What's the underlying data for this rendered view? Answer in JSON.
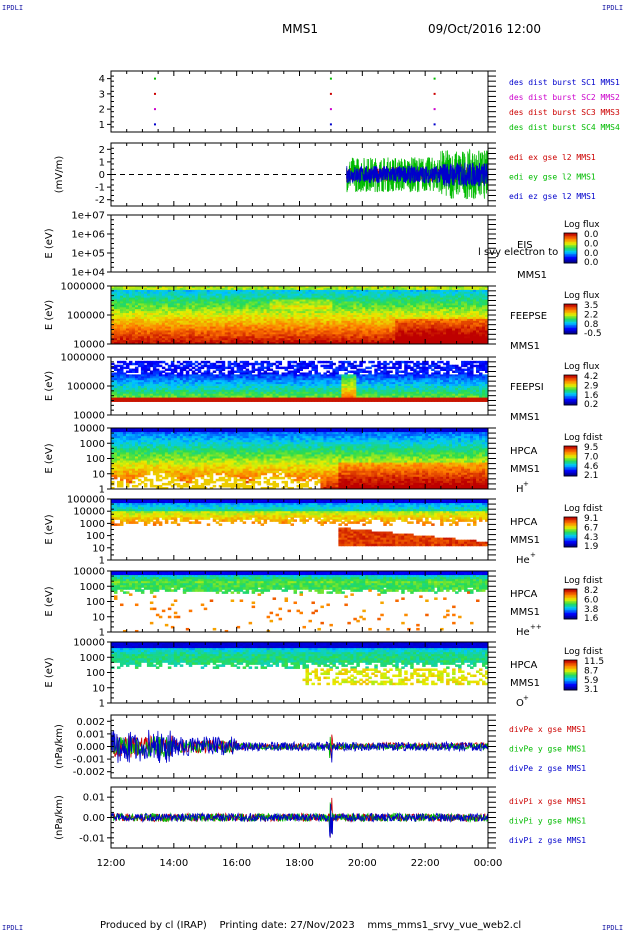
{
  "header": {
    "corner_left_top": "IPDLI",
    "corner_right_top": "IPDLI",
    "corner_left_bottom": "IPDLI",
    "corner_right_bottom": "IPDLI",
    "title": "MMS1",
    "date": "09/Oct/2016 12:00"
  },
  "footer": {
    "produced": "Produced by cl (IRAP)",
    "printing": "Printing date: 27/Nov/2023",
    "script": "mms_mms1_srvy_vue_web2.cl"
  },
  "colors": {
    "blue": "#0000cc",
    "magenta": "#cc00cc",
    "red": "#cc0000",
    "green": "#00bb00"
  },
  "chart_data": [
    {
      "type": "scatter",
      "id": "burst",
      "ylabel": "",
      "ylim": [
        0.5,
        4.5
      ],
      "ticks": [
        "1",
        "2",
        "3",
        "4"
      ],
      "series": [
        {
          "name": "des dist burst SC1 MMS1",
          "color": "blue",
          "y": 1,
          "x": [
            13.4,
            19.0,
            22.3
          ]
        },
        {
          "name": "des dist burst SC2 MMS2",
          "color": "magenta",
          "y": 2,
          "x": [
            13.4,
            19.0,
            22.3
          ]
        },
        {
          "name": "des dist burst SC3 MMS3",
          "color": "red",
          "y": 3,
          "x": [
            13.4,
            19.0,
            22.3
          ]
        },
        {
          "name": "des dist burst SC4 MMS4",
          "color": "green",
          "y": 4,
          "x": [
            13.4,
            19.0,
            22.3
          ]
        }
      ]
    },
    {
      "type": "line",
      "id": "edi",
      "ylabel": "(mV/m)",
      "ylim": [
        -2.5,
        2.5
      ],
      "ticks": [
        "2",
        "1",
        "0",
        "-1",
        "-2"
      ],
      "data_start_hour": 19.5,
      "series": [
        {
          "name": "edi ex gse l2 MMS1",
          "color": "red",
          "amplitude": 0.6
        },
        {
          "name": "edi ey gse l2 MMS1",
          "color": "green",
          "amplitude": 1.4
        },
        {
          "name": "edi ez gse l2 MMS1",
          "color": "blue",
          "amplitude": 0.7
        }
      ]
    },
    {
      "type": "heatmap",
      "id": "eis",
      "ylabel": "E (eV)",
      "ticks": [
        "1e+07",
        "1e+06",
        "1e+05",
        "1e+04"
      ],
      "side_label_1": "EIS",
      "side_label_2": "MMS1",
      "overlay_text": "l svy electron to",
      "colorbar_title": "Log flux",
      "colorbar_ticks": [
        "0.0",
        "0.0",
        "0.0",
        "0.0"
      ],
      "empty": true
    },
    {
      "type": "heatmap",
      "id": "feepse",
      "ylabel": "E (eV)",
      "ticks": [
        "1000000",
        "100000",
        "10000"
      ],
      "side_label_1": "FEEPSE",
      "side_label_2": "MMS1",
      "colorbar_title": "Log flux",
      "colorbar_ticks": [
        "3.5",
        "2.2",
        "0.8",
        "-0.5"
      ],
      "profile": "feepse"
    },
    {
      "type": "heatmap",
      "id": "feepsi",
      "ylabel": "E (eV)",
      "ticks": [
        "1000000",
        "100000",
        "10000"
      ],
      "side_label_1": "FEEPSI",
      "side_label_2": "MMS1",
      "colorbar_title": "Log flux",
      "colorbar_ticks": [
        "4.2",
        "2.9",
        "1.6",
        "0.2"
      ],
      "profile": "feepsi"
    },
    {
      "type": "heatmap",
      "id": "hpca_h",
      "ylabel": "E (eV)",
      "ticks": [
        "10000",
        "1000",
        "100",
        "10",
        "1"
      ],
      "side_label_1": "HPCA",
      "side_label_2": "MMS1",
      "species": "H",
      "species_sup": "+",
      "colorbar_title": "Log fdist",
      "colorbar_ticks": [
        "9.5",
        "7.0",
        "4.6",
        "2.1"
      ],
      "profile": "h"
    },
    {
      "type": "heatmap",
      "id": "hpca_he",
      "ylabel": "E (eV)",
      "ticks": [
        "100000",
        "10000",
        "1000",
        "100",
        "10",
        "1"
      ],
      "side_label_1": "HPCA",
      "side_label_2": "MMS1",
      "species": "He",
      "species_sup": "+",
      "colorbar_title": "Log fdist",
      "colorbar_ticks": [
        "9.1",
        "6.7",
        "4.3",
        "1.9"
      ],
      "profile": "he"
    },
    {
      "type": "heatmap",
      "id": "hpca_hepp",
      "ylabel": "E (eV)",
      "ticks": [
        "10000",
        "1000",
        "100",
        "10",
        "1"
      ],
      "side_label_1": "HPCA",
      "side_label_2": "MMS1",
      "species": "He",
      "species_sup": "++",
      "colorbar_title": "Log fdist",
      "colorbar_ticks": [
        "8.2",
        "6.0",
        "3.8",
        "1.6"
      ],
      "profile": "hepp"
    },
    {
      "type": "heatmap",
      "id": "hpca_o",
      "ylabel": "E (eV)",
      "ticks": [
        "10000",
        "1000",
        "100",
        "10",
        "1"
      ],
      "side_label_1": "HPCA",
      "side_label_2": "MMS1",
      "species": "O",
      "species_sup": "+",
      "colorbar_title": "Log fdist",
      "colorbar_ticks": [
        "11.5",
        "8.7",
        "5.9",
        "3.1"
      ],
      "profile": "o"
    },
    {
      "type": "line",
      "id": "divpe",
      "ylabel": "(nPa/km)",
      "ylim": [
        -0.0025,
        0.0025
      ],
      "ticks": [
        "0.002",
        "0.001",
        "0.000",
        "-0.001",
        "-0.002"
      ],
      "series": [
        {
          "name": "divPe x gse MMS1",
          "color": "red",
          "amplitude": 0.0004
        },
        {
          "name": "divPe y gse MMS1",
          "color": "green",
          "amplitude": 0.0004
        },
        {
          "name": "divPe z gse MMS1",
          "color": "blue",
          "amplitude": 0.0006
        }
      ]
    },
    {
      "type": "line",
      "id": "divpi",
      "ylabel": "(nPa/km)",
      "ylim": [
        -0.015,
        0.015
      ],
      "ticks": [
        "0.01",
        "0.00",
        "-0.01"
      ],
      "series": [
        {
          "name": "divPi x gse MMS1",
          "color": "red",
          "amplitude": 0.002
        },
        {
          "name": "divPi y gse MMS1",
          "color": "green",
          "amplitude": 0.002
        },
        {
          "name": "divPi z gse MMS1",
          "color": "blue",
          "amplitude": 0.002
        }
      ]
    }
  ],
  "x_axis": {
    "range_hours": [
      12,
      24
    ],
    "tick_labels": [
      "12:00",
      "14:00",
      "16:00",
      "18:00",
      "20:00",
      "22:00",
      "00:00"
    ]
  }
}
